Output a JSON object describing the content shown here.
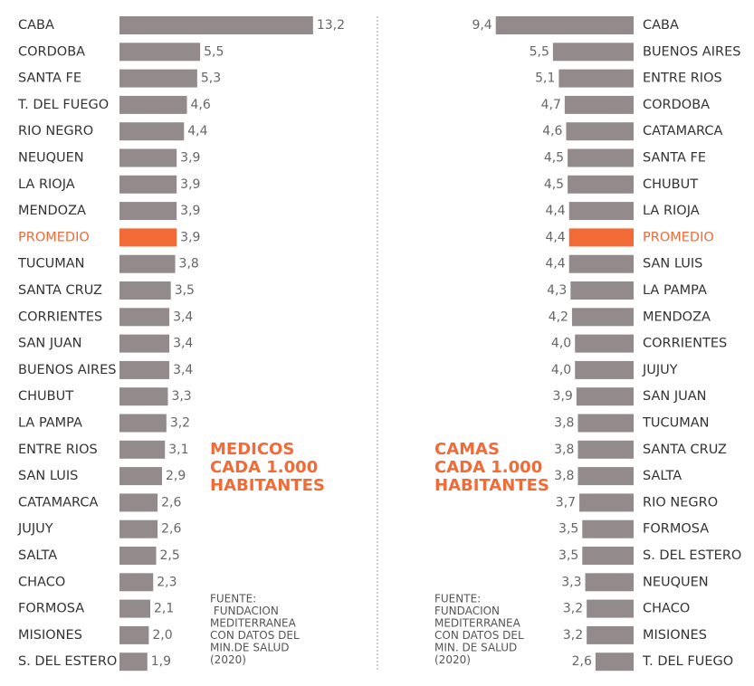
{
  "chart_data": [
    {
      "type": "bar",
      "orientation": "horizontal",
      "bar_direction": "right",
      "title": [
        "MEDICOS",
        "CADA 1.000",
        "HABITANTES"
      ],
      "source": [
        "FUENTE:",
        " FUNDACION",
        "MEDITERRANEA",
        "CON DATOS DEL",
        "MIN.DE SALUD",
        "(2020)"
      ],
      "title_color": "#f26a36",
      "categories": [
        "CABA",
        "CORDOBA",
        "SANTA FE",
        "T. DEL FUEGO",
        "RIO NEGRO",
        "NEUQUEN",
        "LA RIOJA",
        "MENDOZA",
        "PROMEDIO",
        "TUCUMAN",
        "SANTA CRUZ",
        "CORRIENTES",
        "SAN JUAN",
        "BUENOS AIRES",
        "CHUBUT",
        "LA PAMPA",
        "ENTRE RIOS",
        "SAN LUIS",
        "CATAMARCA",
        "JUJUY",
        "SALTA",
        "CHACO",
        "FORMOSA",
        "MISIONES",
        "S. DEL ESTERO"
      ],
      "values": [
        13.2,
        5.5,
        5.3,
        4.6,
        4.4,
        3.9,
        3.9,
        3.9,
        3.9,
        3.8,
        3.5,
        3.4,
        3.4,
        3.4,
        3.3,
        3.2,
        3.1,
        2.9,
        2.6,
        2.6,
        2.5,
        2.3,
        2.1,
        2.0,
        1.9
      ],
      "value_labels": [
        "13,2",
        "5,5",
        "5,3",
        "4,6",
        "4,4",
        "3,9",
        "3,9",
        "3,9",
        "3,9",
        "3,8",
        "3,5",
        "3,4",
        "3,4",
        "3,4",
        "3,3",
        "3,2",
        "3,1",
        "2,9",
        "2,6",
        "2,6",
        "2,5",
        "2,3",
        "2,1",
        "2,0",
        "1,9"
      ],
      "colors": [
        "#938a8b",
        "#938a8b",
        "#938a8b",
        "#938a8b",
        "#938a8b",
        "#938a8b",
        "#938a8b",
        "#938a8b",
        "#f26a36",
        "#938a8b",
        "#938a8b",
        "#938a8b",
        "#938a8b",
        "#938a8b",
        "#938a8b",
        "#938a8b",
        "#938a8b",
        "#938a8b",
        "#938a8b",
        "#938a8b",
        "#938a8b",
        "#938a8b",
        "#938a8b",
        "#938a8b",
        "#938a8b"
      ]
    },
    {
      "type": "bar",
      "orientation": "horizontal",
      "bar_direction": "left",
      "title": [
        "CAMAS",
        "CADA 1.000",
        "HABITANTES"
      ],
      "source": [
        "FUENTE:",
        "FUNDACION",
        "MEDITERRANEA",
        "CON DATOS DEL",
        "MIN. DE SALUD",
        "(2020)"
      ],
      "title_color": "#f26a36",
      "categories": [
        "CABA",
        "BUENOS AIRES",
        "ENTRE RIOS",
        "CORDOBA",
        "CATAMARCA",
        "SANTA FE",
        "CHUBUT",
        "LA RIOJA",
        "PROMEDIO",
        "SAN LUIS",
        "LA PAMPA",
        "MENDOZA",
        "CORRIENTES",
        "JUJUY",
        "SAN JUAN",
        "TUCUMAN",
        "SANTA CRUZ",
        "SALTA",
        "RIO NEGRO",
        "FORMOSA",
        "S. DEL ESTERO",
        "NEUQUEN",
        "CHACO",
        "MISIONES",
        "T. DEL FUEGO"
      ],
      "values": [
        9.4,
        5.5,
        5.1,
        4.7,
        4.6,
        4.5,
        4.5,
        4.4,
        4.4,
        4.4,
        4.3,
        4.2,
        4.0,
        4.0,
        3.9,
        3.8,
        3.8,
        3.8,
        3.7,
        3.5,
        3.5,
        3.3,
        3.2,
        3.2,
        2.6
      ],
      "value_labels": [
        "9,4",
        "5,5",
        "5,1",
        "4,7",
        "4,6",
        "4,5",
        "4,5",
        "4,4",
        "4,4",
        "4,4",
        "4,3",
        "4,2",
        "4,0",
        "4,0",
        "3,9",
        "3,8",
        "3,8",
        "3,8",
        "3,7",
        "3,5",
        "3,5",
        "3,3",
        "3,2",
        "3,2",
        "2,6"
      ],
      "colors": [
        "#938a8b",
        "#938a8b",
        "#938a8b",
        "#938a8b",
        "#938a8b",
        "#938a8b",
        "#938a8b",
        "#938a8b",
        "#f26a36",
        "#938a8b",
        "#938a8b",
        "#938a8b",
        "#938a8b",
        "#938a8b",
        "#938a8b",
        "#938a8b",
        "#938a8b",
        "#938a8b",
        "#938a8b",
        "#938a8b",
        "#938a8b",
        "#938a8b",
        "#938a8b",
        "#938a8b",
        "#938a8b"
      ]
    }
  ]
}
